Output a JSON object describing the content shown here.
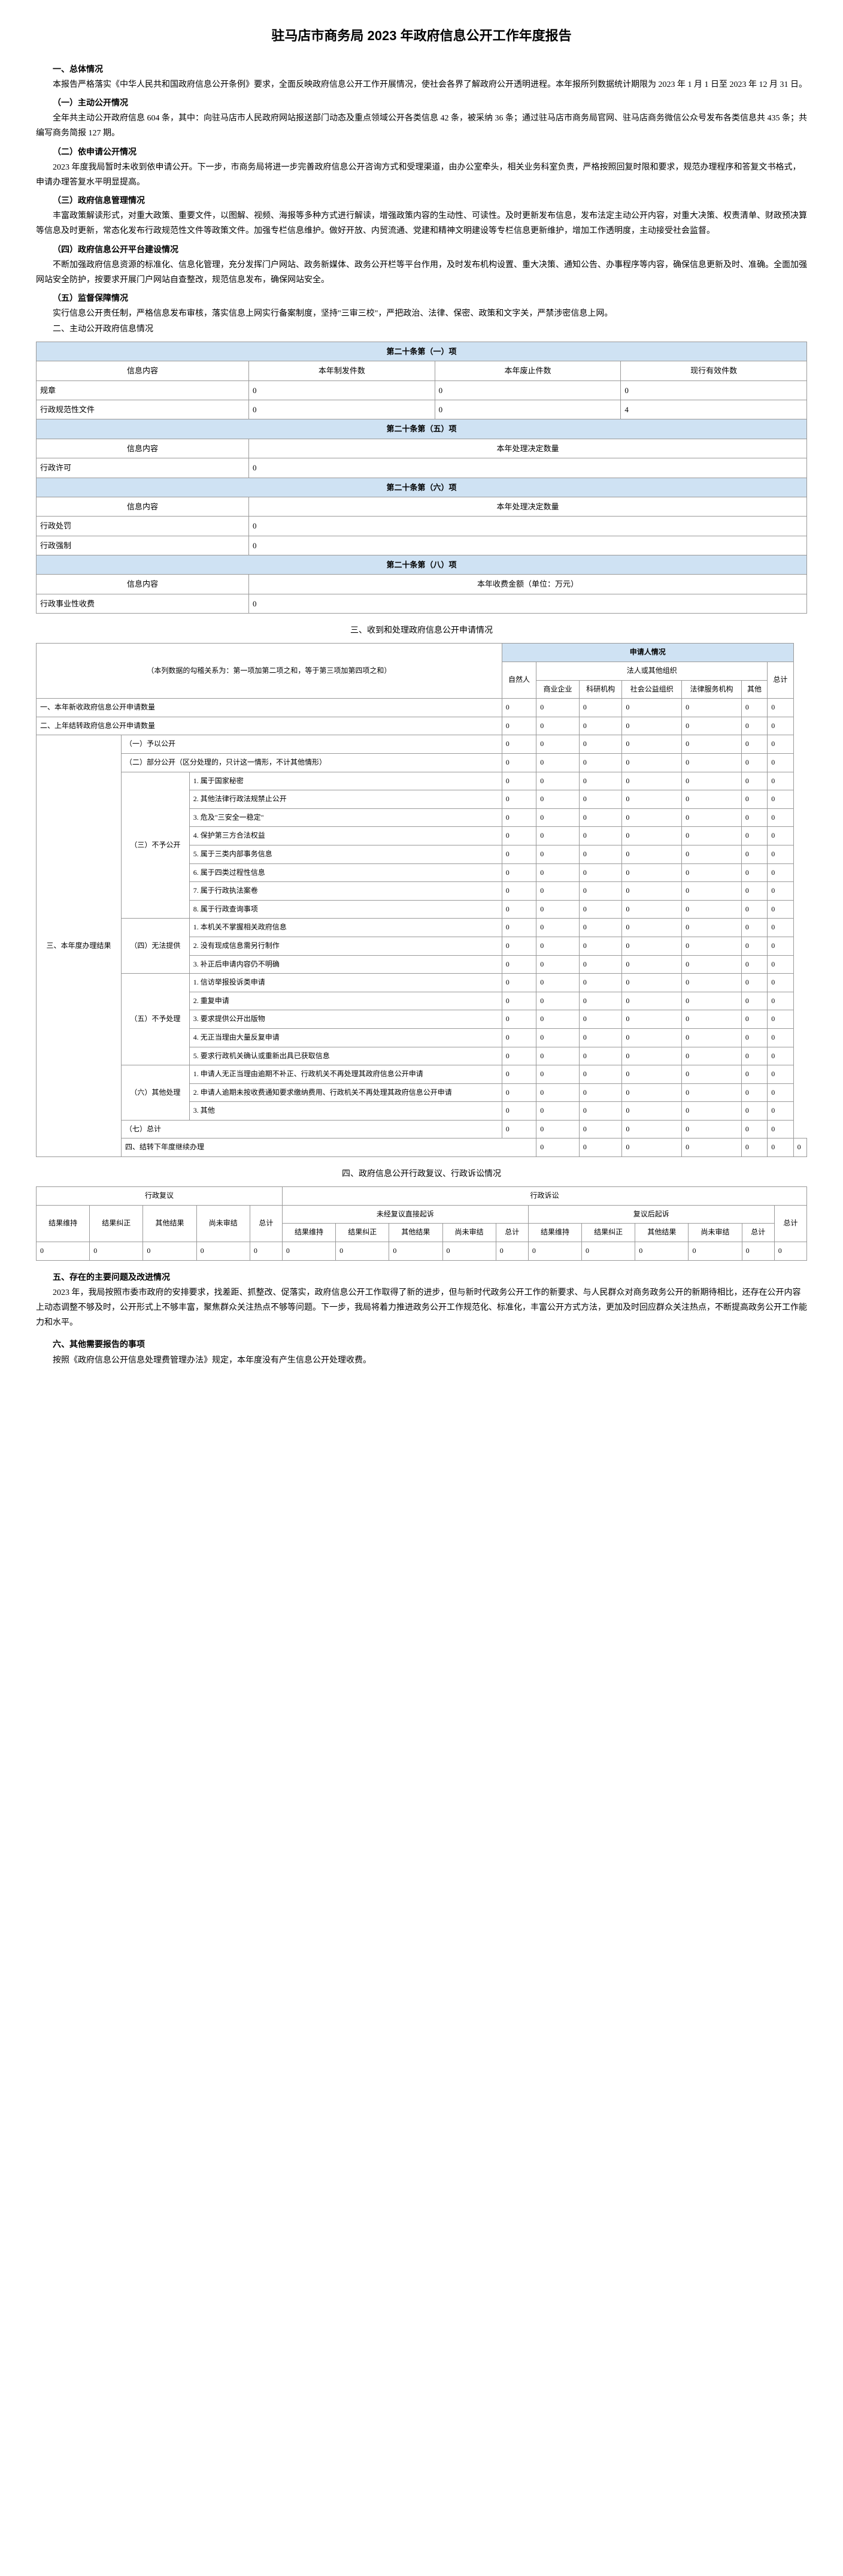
{
  "title": "驻马店市商务局 2023 年政府信息公开工作年度报告",
  "s1": {
    "title": "一、总体情况",
    "intro": "本报告严格落实《中华人民共和国政府信息公开条例》要求，全面反映政府信息公开工作开展情况，使社会各界了解政府公开透明进程。本年报所列数据统计期限为 2023 年 1 月 1 日至 2023 年 12 月 31 日。",
    "sub1": {
      "title": "（一）主动公开情况",
      "body": "全年共主动公开政府信息 604 条，其中：向驻马店市人民政府网站报送部门动态及重点领域公开各类信息 42 条，被采纳 36 条；通过驻马店市商务局官网、驻马店商务微信公众号发布各类信息共 435 条；共编写商务简报 127 期。"
    },
    "sub2": {
      "title": "（二）依申请公开情况",
      "body": "2023 年度我局暂时未收到依申请公开。下一步，市商务局将进一步完善政府信息公开咨询方式和受理渠道，由办公室牵头，相关业务科室负责，严格按照回复时限和要求，规范办理程序和答复文书格式，申请办理答复水平明显提高。"
    },
    "sub3": {
      "title": "（三）政府信息管理情况",
      "body": "丰富政策解读形式，对重大政策、重要文件，以图解、视频、海报等多种方式进行解读，增强政策内容的生动性、可读性。及时更新发布信息，发布法定主动公开内容，对重大决策、权责清单、财政预决算等信息及时更新，常态化发布行政规范性文件等政策文件。加强专栏信息维护。做好开放、内贸流通、党建和精神文明建设等专栏信息更新维护，增加工作透明度，主动接受社会监督。"
    },
    "sub4": {
      "title": "（四）政府信息公开平台建设情况",
      "body": "不断加强政府信息资源的标准化、信息化管理，充分发挥门户网站、政务新媒体、政务公开栏等平台作用，及时发布机构设置、重大决策、通知公告、办事程序等内容，确保信息更新及时、准确。全面加强网站安全防护，按要求开展门户网站自查整改，规范信息发布，确保网站安全。"
    },
    "sub5": {
      "title": "（五）监督保障情况",
      "body": "实行信息公开责任制，严格信息发布审核，落实信息上网实行备案制度，坚持\"三审三校\"，严把政治、法律、保密、政策和文字关，严禁涉密信息上网。"
    }
  },
  "s2": {
    "title": "二、主动公开政府信息情况",
    "t1": {
      "header": "第二十条第（一）项",
      "cols": [
        "信息内容",
        "本年制发件数",
        "本年废止件数",
        "现行有效件数"
      ],
      "rows": [
        [
          "规章",
          "0",
          "0",
          "0"
        ],
        [
          "行政规范性文件",
          "0",
          "0",
          "4"
        ]
      ]
    },
    "t5": {
      "header": "第二十条第（五）项",
      "cols": [
        "信息内容",
        "本年处理决定数量"
      ],
      "rows": [
        [
          "行政许可",
          "0"
        ]
      ]
    },
    "t6": {
      "header": "第二十条第（六）项",
      "cols": [
        "信息内容",
        "本年处理决定数量"
      ],
      "rows": [
        [
          "行政处罚",
          "0"
        ],
        [
          "行政强制",
          "0"
        ]
      ]
    },
    "t8": {
      "header": "第二十条第（八）项",
      "cols": [
        "信息内容",
        "本年收费金额（单位：万元）"
      ],
      "rows": [
        [
          "行政事业性收费",
          "0"
        ]
      ]
    }
  },
  "s3": {
    "title": "三、收到和处理政府信息公开申请情况",
    "note": "（本列数据的勾稽关系为：第一项加第二项之和，等于第三项加第四项之和）",
    "colgroup": [
      "自然人",
      "商业企业",
      "科研机构",
      "社会公益组织",
      "法律服务机构",
      "其他",
      "总计"
    ],
    "applicantHeader": "申请人情况",
    "legalHeader": "法人或其他组织",
    "rows": [
      {
        "label": "一、本年新收政府信息公开申请数量",
        "v": [
          "0",
          "0",
          "0",
          "0",
          "0",
          "0",
          "0"
        ]
      },
      {
        "label": "二、上年结转政府信息公开申请数量",
        "v": [
          "0",
          "0",
          "0",
          "0",
          "0",
          "0",
          "0"
        ]
      }
    ],
    "group3Label": "三、本年度办理结果",
    "g3": [
      {
        "label": "（一）予以公开",
        "v": [
          "0",
          "0",
          "0",
          "0",
          "0",
          "0",
          "0"
        ]
      },
      {
        "label": "（二）部分公开（区分处理的，只计这一情形，不计其他情形）",
        "v": [
          "0",
          "0",
          "0",
          "0",
          "0",
          "0",
          "0"
        ]
      }
    ],
    "g3sub3Label": "（三）不予公开",
    "g3sub3": [
      {
        "label": "1. 属于国家秘密",
        "v": [
          "0",
          "0",
          "0",
          "0",
          "0",
          "0",
          "0"
        ]
      },
      {
        "label": "2. 其他法律行政法规禁止公开",
        "v": [
          "0",
          "0",
          "0",
          "0",
          "0",
          "0",
          "0"
        ]
      },
      {
        "label": "3. 危及\"三安全一稳定\"",
        "v": [
          "0",
          "0",
          "0",
          "0",
          "0",
          "0",
          "0"
        ]
      },
      {
        "label": "4. 保护第三方合法权益",
        "v": [
          "0",
          "0",
          "0",
          "0",
          "0",
          "0",
          "0"
        ]
      },
      {
        "label": "5. 属于三类内部事务信息",
        "v": [
          "0",
          "0",
          "0",
          "0",
          "0",
          "0",
          "0"
        ]
      },
      {
        "label": "6. 属于四类过程性信息",
        "v": [
          "0",
          "0",
          "0",
          "0",
          "0",
          "0",
          "0"
        ]
      },
      {
        "label": "7. 属于行政执法案卷",
        "v": [
          "0",
          "0",
          "0",
          "0",
          "0",
          "0",
          "0"
        ]
      },
      {
        "label": "8. 属于行政查询事项",
        "v": [
          "0",
          "0",
          "0",
          "0",
          "0",
          "0",
          "0"
        ]
      }
    ],
    "g3sub4Label": "（四）无法提供",
    "g3sub4": [
      {
        "label": "1. 本机关不掌握相关政府信息",
        "v": [
          "0",
          "0",
          "0",
          "0",
          "0",
          "0",
          "0"
        ]
      },
      {
        "label": "2. 没有现成信息需另行制作",
        "v": [
          "0",
          "0",
          "0",
          "0",
          "0",
          "0",
          "0"
        ]
      },
      {
        "label": "3. 补正后申请内容仍不明确",
        "v": [
          "0",
          "0",
          "0",
          "0",
          "0",
          "0",
          "0"
        ]
      }
    ],
    "g3sub5Label": "（五）不予处理",
    "g3sub5": [
      {
        "label": "1. 信访举报投诉类申请",
        "v": [
          "0",
          "0",
          "0",
          "0",
          "0",
          "0",
          "0"
        ]
      },
      {
        "label": "2. 重复申请",
        "v": [
          "0",
          "0",
          "0",
          "0",
          "0",
          "0",
          "0"
        ]
      },
      {
        "label": "3. 要求提供公开出版物",
        "v": [
          "0",
          "0",
          "0",
          "0",
          "0",
          "0",
          "0"
        ]
      },
      {
        "label": "4. 无正当理由大量反复申请",
        "v": [
          "0",
          "0",
          "0",
          "0",
          "0",
          "0",
          "0"
        ]
      },
      {
        "label": "5. 要求行政机关确认或重新出具已获取信息",
        "v": [
          "0",
          "0",
          "0",
          "0",
          "0",
          "0",
          "0"
        ]
      }
    ],
    "g3sub6Label": "（六）其他处理",
    "g3sub6": [
      {
        "label": "1. 申请人无正当理由逾期不补正、行政机关不再处理其政府信息公开申请",
        "v": [
          "0",
          "0",
          "0",
          "0",
          "0",
          "0",
          "0"
        ]
      },
      {
        "label": "2. 申请人逾期未按收费通知要求缴纳费用、行政机关不再处理其政府信息公开申请",
        "v": [
          "0",
          "0",
          "0",
          "0",
          "0",
          "0",
          "0"
        ]
      },
      {
        "label": "3. 其他",
        "v": [
          "0",
          "0",
          "0",
          "0",
          "0",
          "0",
          "0"
        ]
      }
    ],
    "g3sub7": {
      "label": "（七）总计",
      "v": [
        "0",
        "0",
        "0",
        "0",
        "0",
        "0",
        "0"
      ]
    },
    "row4": {
      "label": "四、结转下年度继续办理",
      "v": [
        "0",
        "0",
        "0",
        "0",
        "0",
        "0",
        "0"
      ]
    }
  },
  "s4": {
    "title": "四、政府信息公开行政复议、行政诉讼情况",
    "fyHeader": "行政复议",
    "ssHeader": "行政诉讼",
    "directHeader": "未经复议直接起诉",
    "afterHeader": "复议后起诉",
    "cols": [
      "结果维持",
      "结果纠正",
      "其他结果",
      "尚未审结",
      "总计"
    ],
    "fy": [
      "0",
      "0",
      "0",
      "0",
      "0"
    ],
    "direct": [
      "0",
      "0",
      "0",
      "0",
      "0"
    ],
    "after": [
      "0",
      "0",
      "0",
      "0",
      "0"
    ],
    "total": "0"
  },
  "s5": {
    "title": "五、存在的主要问题及改进情况",
    "body": "2023 年，我局按照市委市政府的安排要求，找差距、抓整改、促落实，政府信息公开工作取得了新的进步，但与新时代政务公开工作的新要求、与人民群众对商务政务公开的新期待相比，还存在公开内容上动态调整不够及时，公开形式上不够丰富，聚焦群众关注热点不够等问题。下一步，我局将着力推进政务公开工作规范化、标准化，丰富公开方式方法，更加及时回应群众关注热点，不断提高政务公开工作能力和水平。"
  },
  "s6": {
    "title": "六、其他需要报告的事项",
    "body": "按照《政府信息公开信息处理费管理办法》规定，本年度没有产生信息公开处理收费。"
  }
}
